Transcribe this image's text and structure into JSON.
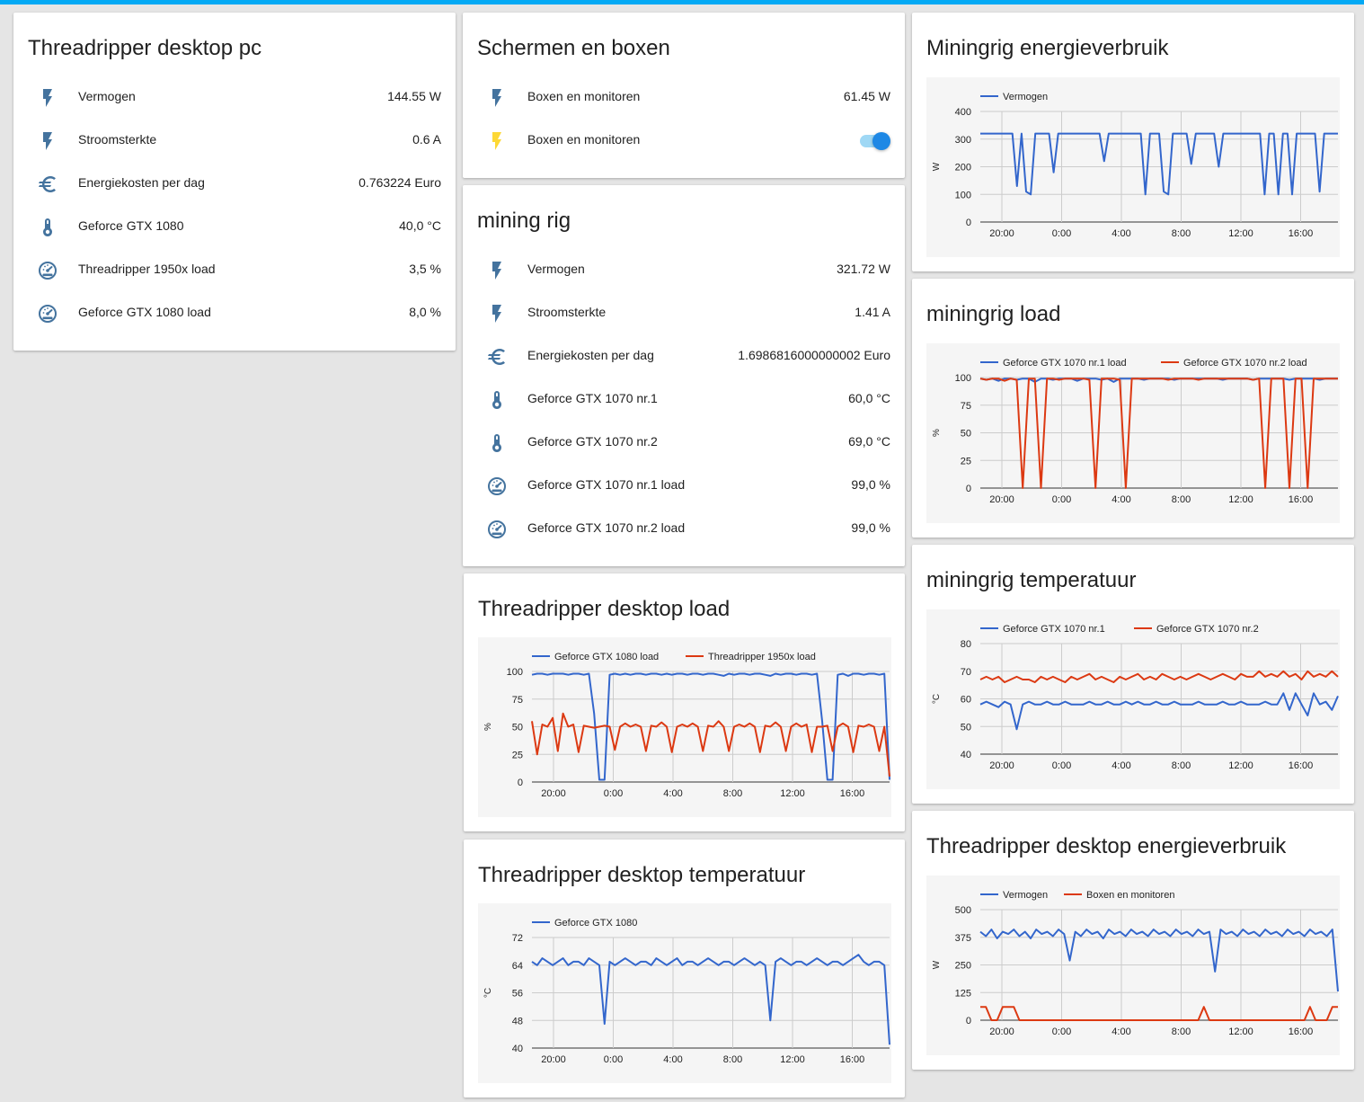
{
  "colors": {
    "icon": "#44739e",
    "icon_active": "#fdd835",
    "series_blue": "#3366cc",
    "series_red": "#dc3912",
    "accent": "#03a9f4"
  },
  "threadripper_pc": {
    "title": "Threadripper desktop pc",
    "rows": [
      {
        "icon": "flash-icon",
        "label": "Vermogen",
        "value": "144.55 W"
      },
      {
        "icon": "flash-icon",
        "label": "Stroomsterkte",
        "value": "0.6 A"
      },
      {
        "icon": "euro-icon",
        "label": "Energiekosten per dag",
        "value": "0.763224 Euro"
      },
      {
        "icon": "thermometer-icon",
        "label": "Geforce GTX 1080",
        "value": "40,0 °C"
      },
      {
        "icon": "gauge-icon",
        "label": "Threadripper 1950x load",
        "value": "3,5 %"
      },
      {
        "icon": "gauge-icon",
        "label": "Geforce GTX 1080 load",
        "value": "8,0 %"
      }
    ]
  },
  "schermen": {
    "title": "Schermen en boxen",
    "rows": [
      {
        "icon": "flash-icon",
        "label": "Boxen en monitoren",
        "value": "61.45 W"
      },
      {
        "icon": "flash-icon",
        "label": "Boxen en monitoren",
        "toggle": "on"
      }
    ]
  },
  "mining_rig": {
    "title": "mining rig",
    "rows": [
      {
        "icon": "flash-icon",
        "label": "Vermogen",
        "value": "321.72 W"
      },
      {
        "icon": "flash-icon",
        "label": "Stroomsterkte",
        "value": "1.41 A"
      },
      {
        "icon": "euro-icon",
        "label": "Energiekosten per dag",
        "value": "1.6986816000000002 Euro"
      },
      {
        "icon": "thermometer-icon",
        "label": "Geforce GTX 1070 nr.1",
        "value": "60,0 °C"
      },
      {
        "icon": "thermometer-icon",
        "label": "Geforce GTX 1070 nr.2",
        "value": "69,0 °C"
      },
      {
        "icon": "gauge-icon",
        "label": "Geforce GTX 1070 nr.1 load",
        "value": "99,0 %"
      },
      {
        "icon": "gauge-icon",
        "label": "Geforce GTX 1070 nr.2 load",
        "value": "99,0 %"
      }
    ]
  },
  "chart_data": [
    {
      "id": "c_tr_load",
      "card_title": "Threadripper desktop load",
      "type": "line",
      "ylabel": "%",
      "ylim": [
        0,
        100
      ],
      "yticks": [
        "100",
        "75",
        "50",
        "25",
        "0"
      ],
      "xticks": [
        "20:00",
        "0:00",
        "4:00",
        "8:00",
        "12:00",
        "16:00"
      ],
      "grid": true,
      "legend": "top-left",
      "series": [
        {
          "name": "Geforce GTX 1080 load",
          "color": "#3366cc",
          "values": [
            97,
            98,
            98,
            97,
            98,
            98,
            98,
            97,
            98,
            98,
            97,
            98,
            62,
            2,
            2,
            97,
            98,
            97,
            98,
            97,
            98,
            98,
            97,
            98,
            98,
            97,
            98,
            97,
            98,
            98,
            97,
            98,
            98,
            97,
            98,
            98,
            97,
            96,
            98,
            97,
            98,
            98,
            97,
            98,
            98,
            97,
            96,
            98,
            97,
            98,
            98,
            97,
            98,
            98,
            97,
            98,
            55,
            2,
            2,
            97,
            98,
            96,
            98,
            98,
            97,
            98,
            98,
            97,
            98,
            2
          ]
        },
        {
          "name": "Threadripper 1950x load",
          "color": "#dc3912",
          "values": [
            55,
            25,
            52,
            50,
            58,
            28,
            62,
            50,
            52,
            27,
            51,
            50,
            49,
            50,
            51,
            50,
            29,
            50,
            53,
            50,
            52,
            50,
            28,
            51,
            50,
            54,
            50,
            27,
            50,
            52,
            50,
            53,
            50,
            28,
            51,
            50,
            55,
            50,
            28,
            50,
            52,
            50,
            53,
            50,
            27,
            51,
            50,
            54,
            50,
            28,
            50,
            53,
            50,
            52,
            27,
            50,
            50,
            51,
            28,
            50,
            53,
            50,
            27,
            51,
            50,
            52,
            50,
            28,
            50,
            5
          ]
        }
      ]
    },
    {
      "id": "c_tr_temp",
      "card_title": "Threadripper desktop temperatuur",
      "type": "line",
      "ylabel": "°C",
      "ylim": [
        40,
        72
      ],
      "yticks": [
        "72",
        "64",
        "56",
        "48",
        "40"
      ],
      "xticks": [
        "20:00",
        "0:00",
        "4:00",
        "8:00",
        "12:00",
        "16:00"
      ],
      "grid": true,
      "legend": "top-left",
      "series": [
        {
          "name": "Geforce GTX 1080",
          "color": "#3366cc",
          "values": [
            65,
            64,
            66,
            65,
            64,
            65,
            66,
            64,
            65,
            65,
            64,
            66,
            65,
            64,
            47,
            65,
            64,
            65,
            66,
            65,
            64,
            65,
            65,
            64,
            66,
            65,
            64,
            65,
            66,
            64,
            65,
            65,
            64,
            65,
            66,
            65,
            64,
            65,
            65,
            64,
            65,
            66,
            65,
            64,
            65,
            64,
            48,
            65,
            66,
            65,
            64,
            65,
            65,
            64,
            65,
            66,
            65,
            64,
            65,
            65,
            64,
            65,
            66,
            67,
            65,
            64,
            65,
            65,
            64,
            41
          ]
        }
      ]
    },
    {
      "id": "c_mr_energy",
      "card_title": "Miningrig energieverbruik",
      "type": "line",
      "ylabel": "W",
      "ylim": [
        0,
        400
      ],
      "yticks": [
        "400",
        "300",
        "200",
        "100",
        "0"
      ],
      "xticks": [
        "20:00",
        "0:00",
        "4:00",
        "8:00",
        "12:00",
        "16:00"
      ],
      "grid": true,
      "legend": "top-left",
      "series": [
        {
          "name": "Vermogen",
          "color": "#3366cc",
          "values": [
            320,
            320,
            320,
            320,
            320,
            320,
            320,
            320,
            130,
            320,
            110,
            100,
            320,
            320,
            320,
            320,
            180,
            320,
            320,
            320,
            320,
            320,
            320,
            320,
            320,
            320,
            320,
            220,
            320,
            320,
            320,
            320,
            320,
            320,
            320,
            320,
            100,
            320,
            320,
            320,
            110,
            100,
            320,
            320,
            320,
            320,
            210,
            320,
            320,
            320,
            320,
            320,
            200,
            320,
            320,
            320,
            320,
            320,
            320,
            320,
            320,
            320,
            100,
            320,
            320,
            100,
            320,
            320,
            100,
            320,
            320,
            320,
            320,
            320,
            110,
            320,
            320,
            320,
            320
          ]
        }
      ]
    },
    {
      "id": "c_mr_load",
      "card_title": "miningrig load",
      "type": "line",
      "ylabel": "%",
      "ylim": [
        0,
        100
      ],
      "yticks": [
        "100",
        "75",
        "50",
        "25",
        "0"
      ],
      "xticks": [
        "20:00",
        "0:00",
        "4:00",
        "8:00",
        "12:00",
        "16:00"
      ],
      "grid": true,
      "legend": "top-left",
      "series": [
        {
          "name": "Geforce GTX 1070 nr.1 load",
          "color": "#3366cc",
          "values": [
            99,
            98,
            99,
            97,
            99,
            99,
            98,
            99,
            99,
            96,
            99,
            99,
            98,
            99,
            99,
            99,
            97,
            99,
            99,
            99,
            98,
            99,
            96,
            99,
            99,
            99,
            99,
            98,
            99,
            99,
            99,
            99,
            98,
            99,
            99,
            99,
            99,
            99,
            99,
            99,
            98,
            99,
            99,
            99,
            99,
            98,
            99,
            99,
            99,
            99,
            99,
            98,
            99,
            99,
            99,
            99,
            98,
            99,
            99,
            99
          ]
        },
        {
          "name": "Geforce GTX 1070 nr.2 load",
          "color": "#dc3912",
          "values": [
            99,
            98,
            99,
            99,
            97,
            99,
            98,
            0,
            99,
            99,
            0,
            99,
            99,
            98,
            99,
            99,
            99,
            99,
            98,
            0,
            99,
            99,
            99,
            98,
            0,
            99,
            99,
            99,
            99,
            99,
            99,
            98,
            99,
            99,
            99,
            99,
            98,
            99,
            99,
            99,
            99,
            99,
            99,
            99,
            99,
            98,
            99,
            0,
            99,
            99,
            99,
            0,
            99,
            99,
            0,
            99,
            99,
            99,
            99,
            99
          ]
        }
      ]
    },
    {
      "id": "c_mr_temp",
      "card_title": "miningrig temperatuur",
      "type": "line",
      "ylabel": "°C",
      "ylim": [
        40,
        80
      ],
      "yticks": [
        "80",
        "70",
        "60",
        "50",
        "40"
      ],
      "xticks": [
        "20:00",
        "0:00",
        "4:00",
        "8:00",
        "12:00",
        "16:00"
      ],
      "grid": true,
      "legend": "top-left",
      "series": [
        {
          "name": "Geforce GTX 1070 nr.1",
          "color": "#3366cc",
          "values": [
            58,
            59,
            58,
            57,
            59,
            58,
            49,
            58,
            59,
            58,
            58,
            59,
            58,
            58,
            59,
            58,
            58,
            58,
            59,
            58,
            58,
            59,
            58,
            58,
            59,
            58,
            59,
            58,
            58,
            59,
            58,
            58,
            59,
            58,
            58,
            58,
            59,
            58,
            58,
            58,
            59,
            58,
            58,
            59,
            58,
            58,
            58,
            59,
            58,
            58,
            62,
            56,
            62,
            58,
            54,
            62,
            58,
            59,
            56,
            61
          ]
        },
        {
          "name": "Geforce GTX 1070 nr.2",
          "color": "#dc3912",
          "values": [
            67,
            68,
            67,
            68,
            66,
            67,
            68,
            67,
            67,
            66,
            68,
            67,
            68,
            67,
            66,
            68,
            67,
            68,
            69,
            67,
            68,
            67,
            66,
            68,
            67,
            68,
            69,
            67,
            68,
            67,
            69,
            68,
            67,
            68,
            67,
            68,
            69,
            68,
            67,
            68,
            69,
            68,
            67,
            69,
            68,
            68,
            70,
            68,
            69,
            68,
            70,
            68,
            69,
            67,
            70,
            68,
            69,
            68,
            70,
            68
          ]
        }
      ]
    },
    {
      "id": "c_tr_energy",
      "card_title": "Threadripper desktop energieverbruik",
      "type": "line",
      "ylabel": "W",
      "ylim": [
        0,
        500
      ],
      "yticks": [
        "500",
        "375",
        "250",
        "125",
        "0"
      ],
      "xticks": [
        "20:00",
        "0:00",
        "4:00",
        "8:00",
        "12:00",
        "16:00"
      ],
      "grid": true,
      "legend": "top-left",
      "series": [
        {
          "name": "Vermogen",
          "color": "#3366cc",
          "values": [
            400,
            380,
            410,
            370,
            400,
            390,
            410,
            380,
            400,
            370,
            410,
            390,
            400,
            380,
            410,
            390,
            270,
            400,
            380,
            410,
            390,
            400,
            370,
            410,
            390,
            400,
            380,
            410,
            390,
            400,
            380,
            410,
            390,
            400,
            380,
            410,
            390,
            400,
            380,
            410,
            390,
            400,
            220,
            410,
            390,
            400,
            380,
            410,
            390,
            400,
            380,
            410,
            390,
            400,
            380,
            410,
            390,
            400,
            380,
            410,
            390,
            400,
            380,
            410,
            130
          ]
        },
        {
          "name": "Boxen en monitoren",
          "color": "#dc3912",
          "values": [
            60,
            60,
            0,
            0,
            60,
            60,
            60,
            0,
            0,
            0,
            0,
            0,
            0,
            0,
            0,
            0,
            0,
            0,
            0,
            0,
            0,
            0,
            0,
            0,
            0,
            0,
            0,
            0,
            0,
            0,
            0,
            0,
            0,
            0,
            0,
            0,
            0,
            0,
            0,
            0,
            60,
            0,
            0,
            0,
            0,
            0,
            0,
            0,
            0,
            0,
            0,
            0,
            0,
            0,
            0,
            0,
            0,
            0,
            0,
            60,
            0,
            0,
            0,
            60,
            60
          ]
        }
      ]
    }
  ]
}
